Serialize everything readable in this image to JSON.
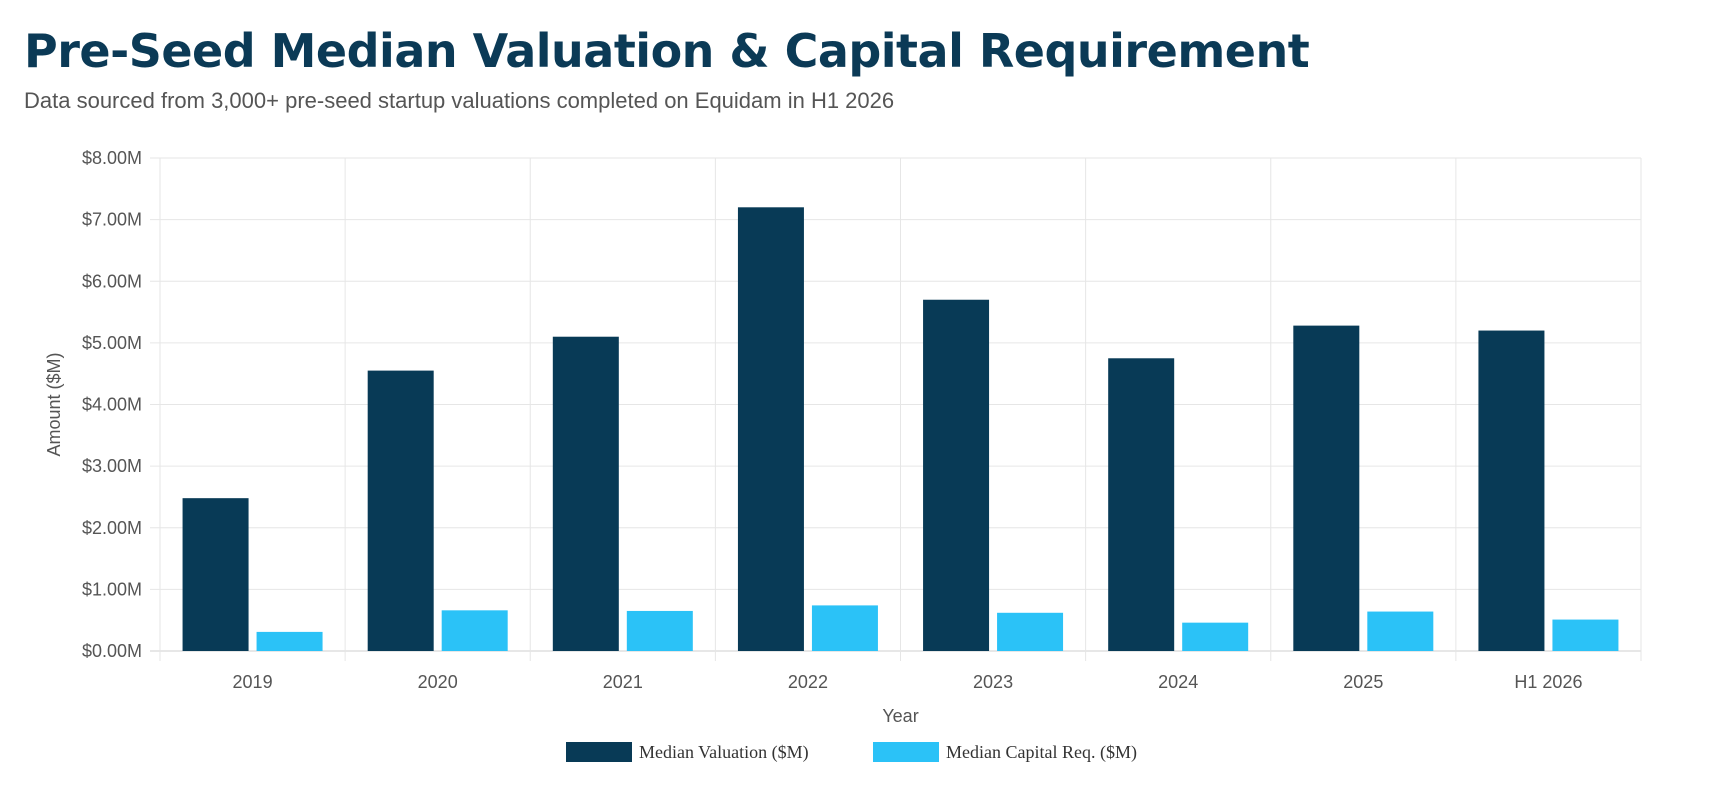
{
  "header": {
    "title": "Pre-Seed Median Valuation & Capital Requirement",
    "subtitle": "Data sourced from 3,000+ pre-seed startup valuations completed on Equidam in H1 2026"
  },
  "chart_data": {
    "type": "bar",
    "xlabel": "Year",
    "ylabel": "Amount ($M)",
    "ylim": [
      0,
      8
    ],
    "yticks": [
      "$0.00M",
      "$1.00M",
      "$2.00M",
      "$3.00M",
      "$4.00M",
      "$5.00M",
      "$6.00M",
      "$7.00M",
      "$8.00M"
    ],
    "categories": [
      "2019",
      "2020",
      "2021",
      "2022",
      "2023",
      "2024",
      "2025",
      "H1 2026"
    ],
    "grid": true,
    "legend": "bottom",
    "series": [
      {
        "name": "Median Valuation ($M)",
        "color": "#083a56",
        "values": [
          2.48,
          4.55,
          5.1,
          7.2,
          5.7,
          4.75,
          5.28,
          5.2
        ]
      },
      {
        "name": "Median Capital Req. ($M)",
        "color": "#2bc2f7",
        "values": [
          0.31,
          0.66,
          0.65,
          0.74,
          0.62,
          0.46,
          0.64,
          0.51
        ]
      }
    ]
  }
}
